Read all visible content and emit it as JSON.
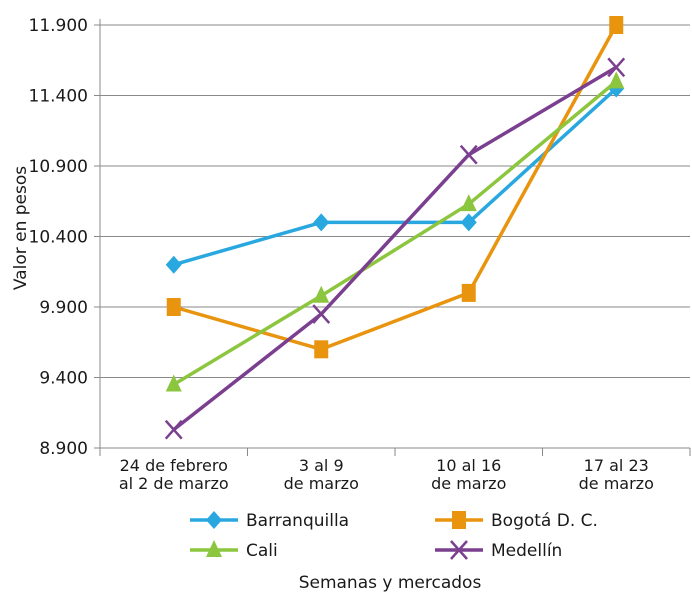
{
  "chart_data": {
    "type": "line",
    "title": "",
    "xlabel": "Semanas y mercados",
    "ylabel": "Valor en pesos",
    "categories": [
      [
        "24 de febrero",
        "al 2 de marzo"
      ],
      [
        "3 al 9",
        "de marzo"
      ],
      [
        "10 al 16",
        "de marzo"
      ],
      [
        "17 al 23",
        "de marzo"
      ]
    ],
    "yticks": [
      "8.900",
      "9.400",
      "9.900",
      "10.400",
      "10.900",
      "11.400",
      "11.900"
    ],
    "ylim": [
      8900,
      11900
    ],
    "grid": true,
    "legend": "bottom",
    "series": [
      {
        "name": "Barranquilla",
        "values": [
          10200,
          10500,
          10500,
          11450
        ],
        "color": "#29a8df",
        "marker": "diamond"
      },
      {
        "name": "Bogotá D. C.",
        "values": [
          9900,
          9600,
          10000,
          11900
        ],
        "color": "#e8940f",
        "marker": "square"
      },
      {
        "name": "Cali",
        "values": [
          9350,
          9980,
          10630,
          11500
        ],
        "color": "#8cc63f",
        "marker": "triangle"
      },
      {
        "name": "Medellín",
        "values": [
          9030,
          9850,
          10980,
          11600
        ],
        "color": "#7b3f8f",
        "marker": "x"
      }
    ]
  }
}
